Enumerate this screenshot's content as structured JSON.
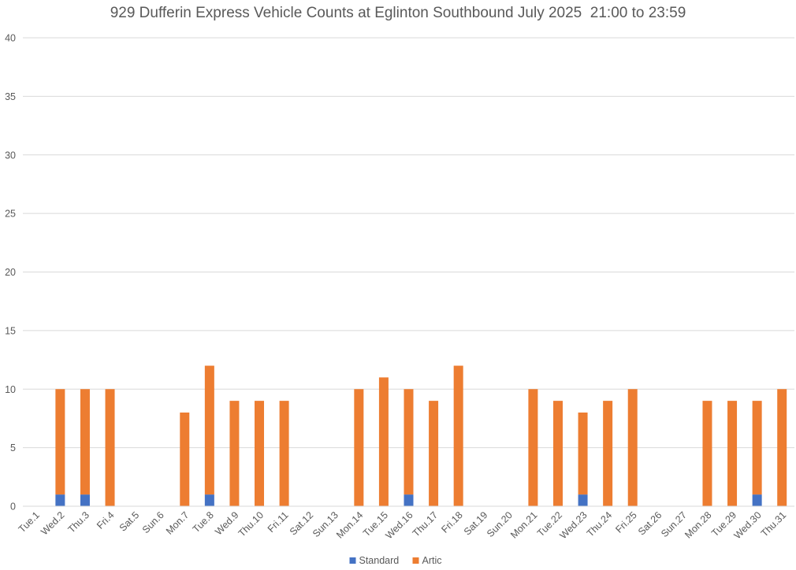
{
  "chart_data": {
    "type": "bar",
    "stacked": true,
    "title": "929 Dufferin Express Vehicle Counts at Eglinton Southbound July 2025  21:00 to 23:59",
    "xlabel": "",
    "ylabel": "",
    "ylim": [
      0,
      40
    ],
    "yticks": [
      0,
      5,
      10,
      15,
      20,
      25,
      30,
      35,
      40
    ],
    "grid": "horizontal",
    "legend_position": "bottom",
    "categories": [
      "Tue.1",
      "Wed.2",
      "Thu.3",
      "Fri.4",
      "Sat.5",
      "Sun.6",
      "Mon.7",
      "Tue.8",
      "Wed.9",
      "Thu.10",
      "Fri.11",
      "Sat.12",
      "Sun.13",
      "Mon.14",
      "Tue.15",
      "Wed.16",
      "Thu.17",
      "Fri.18",
      "Sat.19",
      "Sun.20",
      "Mon.21",
      "Tue.22",
      "Wed.23",
      "Thu.24",
      "Fri.25",
      "Sat.26",
      "Sun.27",
      "Mon.28",
      "Tue.29",
      "Wed.30",
      "Thu.31"
    ],
    "series": [
      {
        "name": "Standard",
        "color": "#4472c4",
        "values": [
          0,
          1,
          1,
          0,
          0,
          0,
          0,
          1,
          0,
          0,
          0,
          0,
          0,
          0,
          0,
          1,
          0,
          0,
          0,
          0,
          0,
          0,
          1,
          0,
          0,
          0,
          0,
          0,
          0,
          1,
          0
        ]
      },
      {
        "name": "Artic",
        "color": "#ed7d31",
        "values": [
          0,
          9,
          9,
          10,
          0,
          0,
          8,
          11,
          9,
          9,
          9,
          0,
          0,
          10,
          11,
          9,
          9,
          12,
          0,
          0,
          10,
          9,
          7,
          9,
          10,
          0,
          0,
          9,
          9,
          8,
          10
        ]
      }
    ]
  }
}
